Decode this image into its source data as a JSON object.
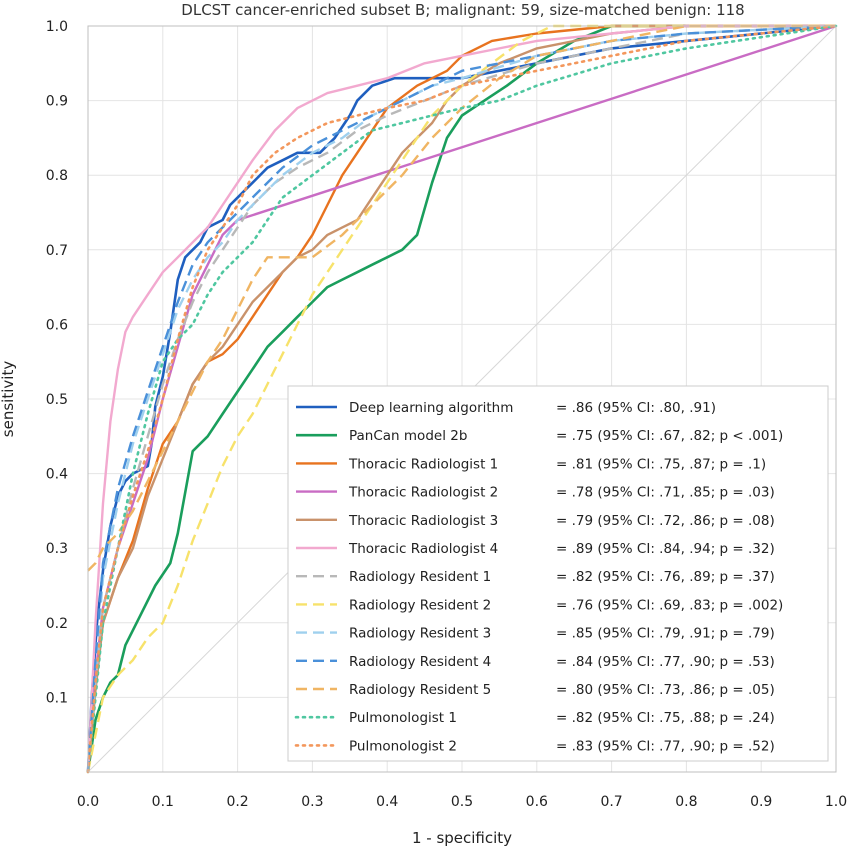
{
  "chart_data": {
    "type": "line",
    "title": "DLCST cancer-enriched subset B; malignant: 59, size-matched benign: 118",
    "xlabel": "1 - specificity",
    "ylabel": "sensitivity",
    "xlim": [
      0,
      1
    ],
    "ylim": [
      0,
      1
    ],
    "x_ticks": [
      "0.0",
      "0.1",
      "0.2",
      "0.3",
      "0.4",
      "0.5",
      "0.6",
      "0.7",
      "0.8",
      "0.9",
      "1.0"
    ],
    "y_ticks": [
      "0.1",
      "0.2",
      "0.3",
      "0.4",
      "0.5",
      "0.6",
      "0.7",
      "0.8",
      "0.9",
      "1.0"
    ],
    "grid": true,
    "legend_position": "bottom-right",
    "series": [
      {
        "name": "Deep learning algorithm",
        "stat": "= .86 (95% CI: .80, .91)",
        "color": "#1f5fbf",
        "style": "solid",
        "width": 2.6,
        "x": [
          0,
          0.005,
          0.012,
          0.02,
          0.03,
          0.04,
          0.05,
          0.06,
          0.08,
          0.085,
          0.09,
          0.1,
          0.11,
          0.12,
          0.13,
          0.14,
          0.15,
          0.16,
          0.18,
          0.19,
          0.2,
          0.21,
          0.22,
          0.24,
          0.26,
          0.28,
          0.31,
          0.33,
          0.35,
          0.36,
          0.38,
          0.41,
          0.43,
          0.46,
          0.5,
          0.6,
          0.7,
          0.8,
          1.0
        ],
        "y": [
          0,
          0.1,
          0.2,
          0.27,
          0.33,
          0.37,
          0.39,
          0.4,
          0.41,
          0.44,
          0.49,
          0.53,
          0.59,
          0.66,
          0.69,
          0.7,
          0.71,
          0.73,
          0.74,
          0.76,
          0.77,
          0.78,
          0.79,
          0.81,
          0.82,
          0.83,
          0.83,
          0.85,
          0.88,
          0.9,
          0.92,
          0.93,
          0.93,
          0.93,
          0.93,
          0.95,
          0.97,
          0.98,
          1.0
        ]
      },
      {
        "name": "PanCan model 2b",
        "stat": "= .75 (95% CI: .67, .82; p < .001)",
        "color": "#1a9e5c",
        "style": "solid",
        "width": 2.6,
        "x": [
          0,
          0.01,
          0.02,
          0.03,
          0.04,
          0.05,
          0.07,
          0.09,
          0.11,
          0.12,
          0.14,
          0.16,
          0.18,
          0.2,
          0.22,
          0.24,
          0.26,
          0.28,
          0.3,
          0.32,
          0.34,
          0.36,
          0.38,
          0.4,
          0.42,
          0.44,
          0.46,
          0.48,
          0.5,
          0.53,
          0.56,
          0.6,
          0.65,
          0.7,
          0.8,
          0.9,
          1.0
        ],
        "y": [
          0,
          0.07,
          0.1,
          0.12,
          0.13,
          0.17,
          0.21,
          0.25,
          0.28,
          0.32,
          0.43,
          0.45,
          0.48,
          0.51,
          0.54,
          0.57,
          0.59,
          0.61,
          0.63,
          0.65,
          0.66,
          0.67,
          0.68,
          0.69,
          0.7,
          0.72,
          0.79,
          0.85,
          0.88,
          0.9,
          0.92,
          0.95,
          0.98,
          1.0,
          1.0,
          1.0,
          1.0
        ]
      },
      {
        "name": "Thoracic Radiologist 1",
        "stat": "= .81 (95% CI: .75, .87; p = .1)",
        "color": "#e8731f",
        "style": "solid",
        "width": 2.4,
        "x": [
          0,
          0.01,
          0.02,
          0.04,
          0.06,
          0.08,
          0.1,
          0.12,
          0.14,
          0.16,
          0.18,
          0.2,
          0.22,
          0.24,
          0.26,
          0.28,
          0.3,
          0.32,
          0.34,
          0.36,
          0.38,
          0.4,
          0.44,
          0.48,
          0.5,
          0.54,
          0.6,
          0.7,
          0.8,
          1.0
        ],
        "y": [
          0,
          0.12,
          0.2,
          0.26,
          0.31,
          0.38,
          0.44,
          0.47,
          0.52,
          0.55,
          0.56,
          0.58,
          0.61,
          0.64,
          0.67,
          0.69,
          0.72,
          0.76,
          0.8,
          0.83,
          0.86,
          0.89,
          0.92,
          0.94,
          0.96,
          0.98,
          0.99,
          1.0,
          1.0,
          1.0
        ]
      },
      {
        "name": "Thoracic Radiologist 2",
        "stat": "= .78 (95% CI: .71, .85; p = .03)",
        "color": "#c96cc4",
        "style": "solid",
        "width": 2.4,
        "x": [
          0,
          0.01,
          0.02,
          0.04,
          0.06,
          0.08,
          0.1,
          0.12,
          0.14,
          0.16,
          0.18,
          0.2,
          1.0
        ],
        "y": [
          0,
          0.13,
          0.22,
          0.3,
          0.36,
          0.42,
          0.5,
          0.57,
          0.64,
          0.68,
          0.72,
          0.74,
          1.0
        ]
      },
      {
        "name": "Thoracic Radiologist 3",
        "stat": "= .79 (95% CI: .72, .86; p = .08)",
        "color": "#c9926b",
        "style": "solid",
        "width": 2.4,
        "x": [
          0,
          0.01,
          0.02,
          0.04,
          0.06,
          0.08,
          0.1,
          0.12,
          0.14,
          0.16,
          0.18,
          0.2,
          0.22,
          0.24,
          0.26,
          0.28,
          0.3,
          0.32,
          0.34,
          0.36,
          0.38,
          0.4,
          0.42,
          0.44,
          0.46,
          0.48,
          0.5,
          0.55,
          0.6,
          0.7,
          0.8,
          1.0
        ],
        "y": [
          0,
          0.11,
          0.2,
          0.26,
          0.3,
          0.37,
          0.42,
          0.47,
          0.52,
          0.55,
          0.57,
          0.6,
          0.63,
          0.65,
          0.67,
          0.69,
          0.7,
          0.72,
          0.73,
          0.74,
          0.77,
          0.8,
          0.83,
          0.85,
          0.87,
          0.9,
          0.92,
          0.95,
          0.97,
          0.99,
          1.0,
          1.0
        ]
      },
      {
        "name": "Thoracic Radiologist 4",
        "stat": "= .89 (95% CI: .84, .94; p = .32)",
        "color": "#f2a9cf",
        "style": "solid",
        "width": 2.4,
        "x": [
          0,
          0.01,
          0.02,
          0.03,
          0.04,
          0.05,
          0.06,
          0.08,
          0.1,
          0.12,
          0.14,
          0.16,
          0.18,
          0.2,
          0.22,
          0.25,
          0.28,
          0.32,
          0.36,
          0.4,
          0.45,
          0.5,
          0.6,
          0.7,
          0.8,
          1.0
        ],
        "y": [
          0,
          0.2,
          0.36,
          0.47,
          0.54,
          0.59,
          0.61,
          0.64,
          0.67,
          0.69,
          0.71,
          0.73,
          0.76,
          0.79,
          0.82,
          0.86,
          0.89,
          0.91,
          0.92,
          0.93,
          0.95,
          0.96,
          0.98,
          0.99,
          1.0,
          1.0
        ]
      },
      {
        "name": "Radiology Resident 1",
        "stat": "= .82 (95% CI: .76, .89; p = .37)",
        "color": "#b8b8b8",
        "style": "dashed",
        "width": 2.4,
        "x": [
          0,
          0.01,
          0.02,
          0.04,
          0.06,
          0.08,
          0.1,
          0.12,
          0.14,
          0.16,
          0.18,
          0.2,
          0.22,
          0.25,
          0.28,
          0.32,
          0.36,
          0.4,
          0.45,
          0.5,
          0.6,
          0.7,
          0.8,
          1.0
        ],
        "y": [
          0,
          0.12,
          0.22,
          0.3,
          0.38,
          0.45,
          0.52,
          0.58,
          0.63,
          0.67,
          0.7,
          0.73,
          0.76,
          0.79,
          0.81,
          0.83,
          0.86,
          0.88,
          0.9,
          0.92,
          0.95,
          0.97,
          0.99,
          1.0
        ]
      },
      {
        "name": "Radiology Resident 2",
        "stat": "= .76 (95% CI: .69, .83; p = .002)",
        "color": "#f7e26b",
        "style": "dashed",
        "width": 2.4,
        "x": [
          0,
          0.02,
          0.04,
          0.06,
          0.08,
          0.1,
          0.12,
          0.14,
          0.16,
          0.18,
          0.2,
          0.22,
          0.24,
          0.26,
          0.28,
          0.3,
          0.32,
          0.34,
          0.36,
          0.38,
          0.4,
          0.42,
          0.44,
          0.46,
          0.48,
          0.5,
          0.54,
          0.58,
          0.62,
          0.7,
          0.8,
          1.0
        ],
        "y": [
          0,
          0.1,
          0.13,
          0.15,
          0.18,
          0.2,
          0.25,
          0.31,
          0.36,
          0.41,
          0.45,
          0.48,
          0.52,
          0.56,
          0.6,
          0.64,
          0.67,
          0.7,
          0.73,
          0.76,
          0.79,
          0.82,
          0.85,
          0.88,
          0.9,
          0.92,
          0.95,
          0.98,
          1.0,
          1.0,
          1.0,
          1.0
        ]
      },
      {
        "name": "Radiology Resident 3",
        "stat": "= .85 (95% CI: .79, .91; p = .79)",
        "color": "#9fd0ee",
        "style": "dashed",
        "width": 2.4,
        "x": [
          0,
          0.01,
          0.02,
          0.04,
          0.06,
          0.08,
          0.1,
          0.12,
          0.14,
          0.16,
          0.18,
          0.2,
          0.23,
          0.26,
          0.3,
          0.34,
          0.38,
          0.42,
          0.46,
          0.5,
          0.6,
          0.7,
          0.8,
          1.0
        ],
        "y": [
          0,
          0.14,
          0.26,
          0.36,
          0.44,
          0.5,
          0.56,
          0.62,
          0.66,
          0.69,
          0.71,
          0.74,
          0.77,
          0.8,
          0.83,
          0.85,
          0.88,
          0.9,
          0.92,
          0.93,
          0.96,
          0.98,
          0.99,
          1.0
        ]
      },
      {
        "name": "Radiology Resident 4",
        "stat": "= .84 (95% CI: .77, .90; p = .53)",
        "color": "#4a90d9",
        "style": "dashed",
        "width": 2.4,
        "x": [
          0,
          0.01,
          0.02,
          0.04,
          0.06,
          0.08,
          0.1,
          0.12,
          0.14,
          0.16,
          0.18,
          0.2,
          0.23,
          0.26,
          0.3,
          0.34,
          0.38,
          0.42,
          0.46,
          0.5,
          0.6,
          0.7,
          0.8,
          1.0
        ],
        "y": [
          0,
          0.15,
          0.28,
          0.38,
          0.45,
          0.51,
          0.57,
          0.63,
          0.68,
          0.71,
          0.73,
          0.75,
          0.78,
          0.81,
          0.84,
          0.86,
          0.88,
          0.9,
          0.92,
          0.94,
          0.96,
          0.98,
          0.99,
          1.0
        ]
      },
      {
        "name": "Radiology Resident 5",
        "stat": "= .80 (95% CI: .73, .86; p = .05)",
        "color": "#f0b563",
        "style": "dashed",
        "width": 2.4,
        "x": [
          0,
          0.01,
          0.02,
          0.04,
          0.06,
          0.08,
          0.1,
          0.12,
          0.14,
          0.16,
          0.18,
          0.2,
          0.22,
          0.24,
          0.26,
          0.3,
          0.34,
          0.38,
          0.42,
          0.46,
          0.5,
          0.55,
          0.6,
          0.7,
          0.8,
          1.0
        ],
        "y": [
          0.27,
          0.28,
          0.3,
          0.32,
          0.35,
          0.39,
          0.43,
          0.47,
          0.51,
          0.55,
          0.58,
          0.62,
          0.66,
          0.69,
          0.69,
          0.69,
          0.72,
          0.76,
          0.8,
          0.85,
          0.89,
          0.93,
          0.96,
          0.98,
          1.0,
          1.0
        ]
      },
      {
        "name": "Pulmonologist 1",
        "stat": "= .82 (95% CI: .75, .88; p = .24)",
        "color": "#4fc7a0",
        "style": "dotted",
        "width": 2.6,
        "x": [
          0,
          0.01,
          0.02,
          0.04,
          0.06,
          0.08,
          0.1,
          0.12,
          0.14,
          0.16,
          0.18,
          0.2,
          0.22,
          0.24,
          0.26,
          0.3,
          0.34,
          0.38,
          0.42,
          0.46,
          0.5,
          0.55,
          0.6,
          0.7,
          0.8,
          1.0
        ],
        "y": [
          0,
          0.1,
          0.2,
          0.3,
          0.4,
          0.48,
          0.55,
          0.58,
          0.6,
          0.64,
          0.67,
          0.69,
          0.71,
          0.74,
          0.77,
          0.8,
          0.83,
          0.86,
          0.87,
          0.88,
          0.89,
          0.9,
          0.92,
          0.95,
          0.97,
          1.0
        ]
      },
      {
        "name": "Pulmonologist 2",
        "stat": "= .83 (95% CI: .77, .90; p = .52)",
        "color": "#f3975c",
        "style": "dotted",
        "width": 2.6,
        "x": [
          0,
          0.01,
          0.02,
          0.04,
          0.06,
          0.08,
          0.1,
          0.12,
          0.14,
          0.16,
          0.18,
          0.2,
          0.22,
          0.25,
          0.28,
          0.32,
          0.36,
          0.4,
          0.45,
          0.5,
          0.6,
          0.7,
          0.8,
          1.0
        ],
        "y": [
          0,
          0.12,
          0.22,
          0.3,
          0.37,
          0.43,
          0.5,
          0.58,
          0.65,
          0.7,
          0.73,
          0.76,
          0.8,
          0.83,
          0.85,
          0.87,
          0.88,
          0.89,
          0.9,
          0.92,
          0.94,
          0.96,
          0.98,
          1.0
        ]
      }
    ]
  }
}
